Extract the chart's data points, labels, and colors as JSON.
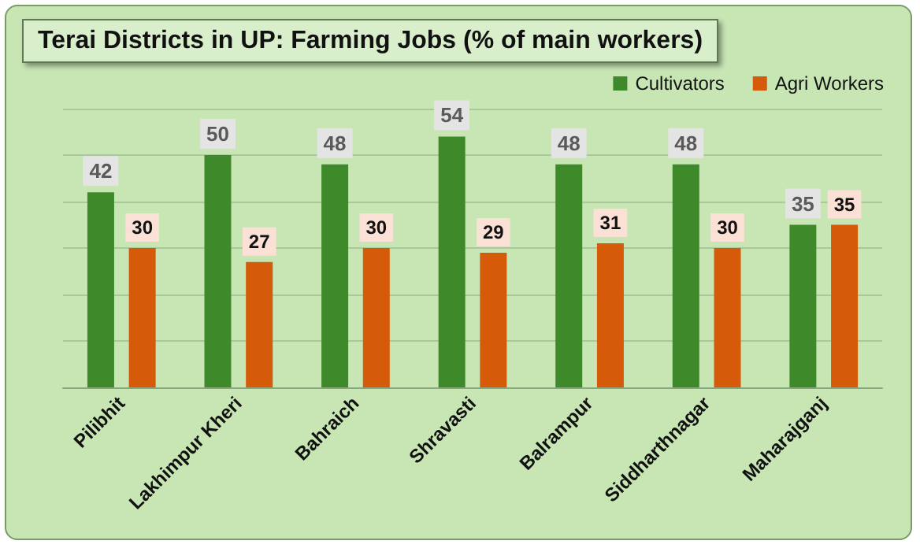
{
  "chart_data": {
    "type": "bar",
    "title": "Terai Districts in UP: Farming Jobs (% of main workers)",
    "categories": [
      "Pilibhit",
      "Lakhimpur Kheri",
      "Bahraich",
      "Shravasti",
      "Balrampur",
      "Siddharthnagar",
      "Maharajganj"
    ],
    "series": [
      {
        "name": "Cultivators",
        "color": "#3e8a2a",
        "values": [
          42,
          50,
          48,
          54,
          48,
          48,
          35
        ]
      },
      {
        "name": "Agri Workers",
        "color": "#d55a0a",
        "values": [
          30,
          27,
          30,
          29,
          31,
          30,
          35
        ]
      }
    ],
    "ylim": [
      0,
      60
    ],
    "yticks": [
      {
        "value": 0,
        "label": null
      },
      {
        "value": 10,
        "label": null
      },
      {
        "value": 20,
        "label": null
      },
      {
        "value": 30,
        "label": null
      },
      {
        "value": 40,
        "label": null
      },
      {
        "value": 50,
        "label": null
      },
      {
        "value": 60,
        "label": null
      }
    ],
    "tick_labels": "x",
    "grid": "y",
    "legend": "top right",
    "data_labels": true
  }
}
